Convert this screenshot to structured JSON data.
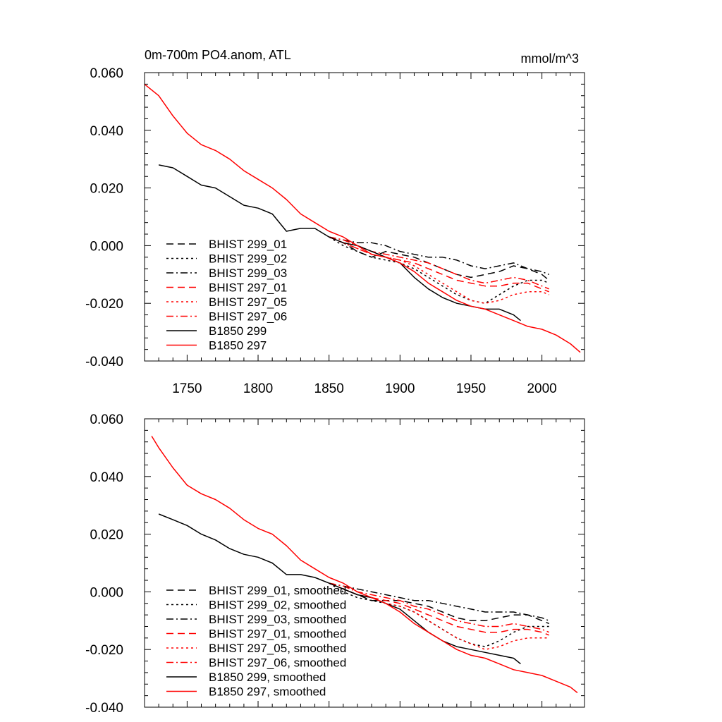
{
  "chart_data": [
    {
      "type": "line",
      "title": "0m-700m PO4.anom, ATL",
      "units": "mmol/m^3",
      "xlim": [
        1720,
        2030
      ],
      "ylim": [
        -0.04,
        0.06
      ],
      "x_ticks": [
        "1750",
        "1800",
        "1850",
        "1900",
        "1950",
        "2000"
      ],
      "y_ticks": [
        "-0.040",
        "-0.020",
        "0.000",
        "0.020",
        "0.040",
        "0.060"
      ],
      "legend_placement": "lower-left",
      "series": [
        {
          "name": "BHIST 299_01",
          "color": "#000000",
          "dash": "dash",
          "x": [
            1850,
            1860,
            1870,
            1880,
            1890,
            1900,
            1910,
            1920,
            1930,
            1940,
            1950,
            1960,
            1970,
            1980,
            1990,
            2000,
            2005
          ],
          "y": [
            0.003,
            0.001,
            -0.002,
            -0.004,
            -0.002,
            -0.003,
            -0.004,
            -0.006,
            -0.008,
            -0.01,
            -0.011,
            -0.01,
            -0.009,
            -0.007,
            -0.008,
            -0.01,
            -0.012
          ]
        },
        {
          "name": "BHIST 299_02",
          "color": "#000000",
          "dash": "dot",
          "x": [
            1850,
            1860,
            1870,
            1880,
            1890,
            1900,
            1910,
            1920,
            1930,
            1940,
            1950,
            1960,
            1970,
            1980,
            1990,
            2000,
            2005
          ],
          "y": [
            0.003,
            0.0,
            -0.002,
            -0.004,
            -0.005,
            -0.006,
            -0.008,
            -0.011,
            -0.014,
            -0.017,
            -0.019,
            -0.02,
            -0.017,
            -0.014,
            -0.012,
            -0.012,
            -0.013
          ]
        },
        {
          "name": "BHIST 299_03",
          "color": "#000000",
          "dash": "dashdot",
          "x": [
            1850,
            1860,
            1870,
            1880,
            1890,
            1900,
            1910,
            1920,
            1930,
            1940,
            1950,
            1960,
            1970,
            1980,
            1990,
            2000,
            2005
          ],
          "y": [
            0.003,
            0.002,
            0.001,
            0.001,
            0.0,
            -0.002,
            -0.003,
            -0.004,
            -0.004,
            -0.005,
            -0.007,
            -0.008,
            -0.007,
            -0.006,
            -0.008,
            -0.009,
            -0.01
          ]
        },
        {
          "name": "BHIST 297_01",
          "color": "#ff0000",
          "dash": "dash",
          "x": [
            1850,
            1860,
            1870,
            1880,
            1890,
            1900,
            1910,
            1920,
            1930,
            1940,
            1950,
            1960,
            1970,
            1980,
            1990,
            2000,
            2005
          ],
          "y": [
            0.003,
            0.001,
            -0.001,
            -0.003,
            -0.004,
            -0.005,
            -0.006,
            -0.008,
            -0.01,
            -0.012,
            -0.013,
            -0.014,
            -0.014,
            -0.013,
            -0.013,
            -0.015,
            -0.016
          ]
        },
        {
          "name": "BHIST 297_05",
          "color": "#ff0000",
          "dash": "dot",
          "x": [
            1850,
            1860,
            1870,
            1880,
            1890,
            1900,
            1910,
            1920,
            1930,
            1940,
            1950,
            1960,
            1970,
            1980,
            1990,
            2000,
            2005
          ],
          "y": [
            0.003,
            0.001,
            -0.001,
            -0.003,
            -0.004,
            -0.005,
            -0.007,
            -0.01,
            -0.013,
            -0.016,
            -0.019,
            -0.02,
            -0.019,
            -0.017,
            -0.016,
            -0.016,
            -0.017
          ]
        },
        {
          "name": "BHIST 297_06",
          "color": "#ff0000",
          "dash": "dashdot",
          "x": [
            1850,
            1860,
            1870,
            1880,
            1890,
            1900,
            1910,
            1920,
            1930,
            1940,
            1950,
            1960,
            1970,
            1980,
            1990,
            2000,
            2005
          ],
          "y": [
            0.003,
            0.002,
            0.0,
            -0.002,
            -0.003,
            -0.004,
            -0.005,
            -0.006,
            -0.008,
            -0.01,
            -0.012,
            -0.013,
            -0.012,
            -0.011,
            -0.012,
            -0.014,
            -0.015
          ]
        },
        {
          "name": "B1850 299",
          "color": "#000000",
          "dash": "solid",
          "x": [
            1730,
            1740,
            1750,
            1760,
            1770,
            1780,
            1790,
            1800,
            1810,
            1820,
            1830,
            1840,
            1850,
            1860,
            1870,
            1880,
            1890,
            1900,
            1910,
            1920,
            1930,
            1940,
            1950,
            1960,
            1970,
            1980,
            1985
          ],
          "y": [
            0.028,
            0.027,
            0.024,
            0.021,
            0.02,
            0.017,
            0.014,
            0.013,
            0.011,
            0.005,
            0.006,
            0.006,
            0.003,
            0.001,
            0.0,
            -0.002,
            -0.004,
            -0.006,
            -0.011,
            -0.015,
            -0.018,
            -0.02,
            -0.021,
            -0.022,
            -0.022,
            -0.024,
            -0.026
          ]
        },
        {
          "name": "B1850 297",
          "color": "#ff0000",
          "dash": "solid",
          "x": [
            1720,
            1730,
            1740,
            1750,
            1760,
            1770,
            1780,
            1790,
            1800,
            1810,
            1820,
            1830,
            1840,
            1850,
            1860,
            1870,
            1880,
            1890,
            1900,
            1910,
            1920,
            1930,
            1940,
            1950,
            1960,
            1970,
            1980,
            1990,
            2000,
            2010,
            2020,
            2027
          ],
          "y": [
            0.056,
            0.052,
            0.045,
            0.039,
            0.035,
            0.033,
            0.03,
            0.026,
            0.023,
            0.02,
            0.016,
            0.011,
            0.008,
            0.005,
            0.003,
            0.0,
            -0.003,
            -0.004,
            -0.006,
            -0.009,
            -0.013,
            -0.016,
            -0.019,
            -0.021,
            -0.022,
            -0.024,
            -0.026,
            -0.028,
            -0.029,
            -0.031,
            -0.034,
            -0.037
          ]
        }
      ]
    },
    {
      "type": "line",
      "title": "",
      "xlim": [
        1720,
        2030
      ],
      "ylim": [
        -0.04,
        0.06
      ],
      "y_ticks": [
        "-0.040",
        "-0.020",
        "0.000",
        "0.020",
        "0.040",
        "0.060"
      ],
      "legend_placement": "lower-left",
      "series": [
        {
          "name": "BHIST 299_01, smoothed",
          "color": "#000000",
          "dash": "dash",
          "x": [
            1850,
            1860,
            1870,
            1880,
            1890,
            1900,
            1910,
            1920,
            1930,
            1940,
            1950,
            1960,
            1970,
            1980,
            1990,
            2000,
            2005
          ],
          "y": [
            0.003,
            0.001,
            -0.001,
            -0.003,
            -0.003,
            -0.003,
            -0.004,
            -0.005,
            -0.007,
            -0.009,
            -0.01,
            -0.01,
            -0.009,
            -0.008,
            -0.008,
            -0.01,
            -0.011
          ]
        },
        {
          "name": "BHIST 299_02, smoothed",
          "color": "#000000",
          "dash": "dot",
          "x": [
            1850,
            1860,
            1870,
            1880,
            1890,
            1900,
            1910,
            1920,
            1930,
            1940,
            1950,
            1960,
            1970,
            1980,
            1990,
            2000,
            2005
          ],
          "y": [
            0.003,
            0.0,
            -0.002,
            -0.003,
            -0.004,
            -0.005,
            -0.007,
            -0.01,
            -0.013,
            -0.016,
            -0.018,
            -0.019,
            -0.017,
            -0.014,
            -0.012,
            -0.012,
            -0.012
          ]
        },
        {
          "name": "BHIST 299_03, smoothed",
          "color": "#000000",
          "dash": "dashdot",
          "x": [
            1850,
            1860,
            1870,
            1880,
            1890,
            1900,
            1910,
            1920,
            1930,
            1940,
            1950,
            1960,
            1970,
            1980,
            1990,
            2000,
            2005
          ],
          "y": [
            0.003,
            0.002,
            0.001,
            0.0,
            -0.001,
            -0.002,
            -0.003,
            -0.003,
            -0.004,
            -0.005,
            -0.006,
            -0.007,
            -0.007,
            -0.007,
            -0.008,
            -0.009,
            -0.01
          ]
        },
        {
          "name": "BHIST 297_01, smoothed",
          "color": "#ff0000",
          "dash": "dash",
          "x": [
            1850,
            1860,
            1870,
            1880,
            1890,
            1900,
            1910,
            1920,
            1930,
            1940,
            1950,
            1960,
            1970,
            1980,
            1990,
            2000,
            2005
          ],
          "y": [
            0.003,
            0.001,
            -0.001,
            -0.002,
            -0.003,
            -0.004,
            -0.006,
            -0.008,
            -0.01,
            -0.012,
            -0.013,
            -0.014,
            -0.014,
            -0.013,
            -0.013,
            -0.014,
            -0.015
          ]
        },
        {
          "name": "BHIST 297_05, smoothed",
          "color": "#ff0000",
          "dash": "dot",
          "x": [
            1850,
            1860,
            1870,
            1880,
            1890,
            1900,
            1910,
            1920,
            1930,
            1940,
            1950,
            1960,
            1970,
            1980,
            1990,
            2000,
            2005
          ],
          "y": [
            0.003,
            0.001,
            -0.001,
            -0.002,
            -0.004,
            -0.005,
            -0.007,
            -0.01,
            -0.013,
            -0.016,
            -0.018,
            -0.02,
            -0.019,
            -0.017,
            -0.016,
            -0.016,
            -0.016
          ]
        },
        {
          "name": "BHIST 297_06, smoothed",
          "color": "#ff0000",
          "dash": "dashdot",
          "x": [
            1850,
            1860,
            1870,
            1880,
            1890,
            1900,
            1910,
            1920,
            1930,
            1940,
            1950,
            1960,
            1970,
            1980,
            1990,
            2000,
            2005
          ],
          "y": [
            0.003,
            0.002,
            0.0,
            -0.001,
            -0.002,
            -0.003,
            -0.005,
            -0.006,
            -0.008,
            -0.01,
            -0.011,
            -0.012,
            -0.012,
            -0.011,
            -0.012,
            -0.013,
            -0.014
          ]
        },
        {
          "name": "B1850 299, smoothed",
          "color": "#000000",
          "dash": "solid",
          "x": [
            1730,
            1740,
            1750,
            1760,
            1770,
            1780,
            1790,
            1800,
            1810,
            1820,
            1830,
            1840,
            1850,
            1860,
            1870,
            1880,
            1890,
            1900,
            1910,
            1920,
            1930,
            1940,
            1950,
            1960,
            1970,
            1980,
            1985
          ],
          "y": [
            0.027,
            0.025,
            0.023,
            0.02,
            0.018,
            0.015,
            0.013,
            0.012,
            0.01,
            0.006,
            0.006,
            0.005,
            0.003,
            0.001,
            -0.001,
            -0.002,
            -0.004,
            -0.006,
            -0.01,
            -0.014,
            -0.017,
            -0.019,
            -0.02,
            -0.021,
            -0.022,
            -0.023,
            -0.025
          ]
        },
        {
          "name": "B1850 297, smoothed",
          "color": "#ff0000",
          "dash": "solid",
          "x": [
            1725,
            1730,
            1740,
            1750,
            1760,
            1770,
            1780,
            1790,
            1800,
            1810,
            1820,
            1830,
            1840,
            1850,
            1860,
            1870,
            1880,
            1890,
            1900,
            1910,
            1920,
            1930,
            1940,
            1950,
            1960,
            1970,
            1980,
            1990,
            2000,
            2010,
            2020,
            2025
          ],
          "y": [
            0.054,
            0.05,
            0.043,
            0.037,
            0.034,
            0.032,
            0.029,
            0.025,
            0.022,
            0.02,
            0.016,
            0.011,
            0.008,
            0.005,
            0.003,
            0.0,
            -0.002,
            -0.004,
            -0.007,
            -0.011,
            -0.014,
            -0.017,
            -0.02,
            -0.022,
            -0.023,
            -0.025,
            -0.027,
            -0.028,
            -0.029,
            -0.031,
            -0.033,
            -0.035
          ]
        }
      ]
    }
  ]
}
